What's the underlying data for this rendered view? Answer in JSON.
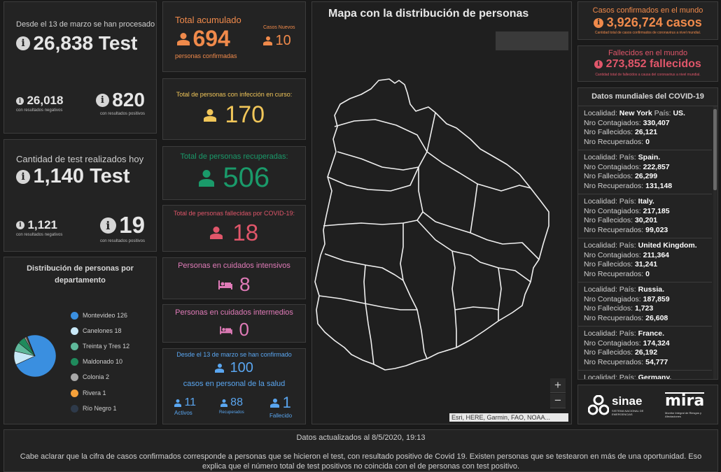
{
  "tests_total": {
    "caption": "Desde el 13 de marzo se han procesado",
    "value": "26,838 Test",
    "negatives": "26,018",
    "negatives_label": "con resultados negativos",
    "positives": "820",
    "positives_label": "con resultados positivos"
  },
  "tests_today": {
    "caption": "Cantidad de test realizados hoy",
    "value": "1,140 Test",
    "negatives": "1,121",
    "negatives_label": "con resultados negativos",
    "positives": "19",
    "positives_label": "con resultados positivos"
  },
  "dept_chart": {
    "title": "Distribución de personas por departamento",
    "chart_data": {
      "type": "pie",
      "categories": [
        "Montevideo",
        "Canelones",
        "Treinta y Tres",
        "Maldonado",
        "Colonia",
        "Rivera",
        "Río Negro"
      ],
      "values": [
        126,
        18,
        12,
        10,
        2,
        1,
        1
      ],
      "colors": [
        "#3a8fe0",
        "#c8e8f7",
        "#5fb89a",
        "#1f8a5c",
        "#a8a8a8",
        "#f5a03a",
        "#2e3a4a"
      ]
    }
  },
  "accumulated": {
    "title": "Total acumulado",
    "value": "694",
    "sub": "personas confirmadas",
    "new_label": "Casos Nuevos",
    "new_value": "10",
    "color": "#f08a4b"
  },
  "in_progress": {
    "title": "Total de personas con infección en curso:",
    "value": "170",
    "color": "#f1c659"
  },
  "recovered": {
    "title": "Total de personas recuperadas:",
    "value": "506",
    "color": "#1a9a6a"
  },
  "deceased": {
    "title": "Total de personas fallecidas por COVID-19:",
    "value": "18",
    "color": "#e0566a"
  },
  "icu": {
    "title": "Personas en cuidados intensivos",
    "value": "8",
    "color": "#e07bb8"
  },
  "intermediate": {
    "title": "Personas en cuidados intermedios",
    "value": "0",
    "color": "#e07bb8"
  },
  "health_staff": {
    "caption": "Desde el 13 de marzo se han confirmado",
    "value": "100",
    "sub": "casos en personal de la salud",
    "active": "11",
    "active_label": "Activos",
    "recovered": "88",
    "recovered_label": "Recuperados",
    "deceased": "1",
    "deceased_label": "Fallecido",
    "color": "#5aa6f0"
  },
  "map": {
    "title": "Mapa con la distribución de personas",
    "attribution": "Esri, HERE, Garmin, FAO, NOAA...",
    "zoom_in": "+",
    "zoom_out": "−"
  },
  "world_cases": {
    "title": "Casos confirmados en el mundo",
    "value": "3,926,724 casos",
    "sub": "Cantidad total de casos confirmados de coronavirus a nivel mundial.",
    "color": "#f08a4b"
  },
  "world_deaths": {
    "title": "Fallecidos en el mundo",
    "value": "273,852 fallecidos",
    "sub": "Cantidad total de fallecidos a causa del coronavirus a nivel mundial.",
    "color": "#e0566a"
  },
  "world_list": {
    "title": "Datos mundiales del COVID-19",
    "labels": {
      "loc": "Localidad:",
      "country": "País:",
      "cases": "Nro Contagiados:",
      "deaths": "Nro Fallecidos:",
      "recovered": "Nro Recuperados:"
    },
    "items": [
      {
        "loc": "New York",
        "country": "US.",
        "cases": "330,407",
        "deaths": "26,121",
        "recovered": "0"
      },
      {
        "loc": "",
        "country": "Spain.",
        "cases": "222,857",
        "deaths": "26,299",
        "recovered": "131,148"
      },
      {
        "loc": "",
        "country": "Italy.",
        "cases": "217,185",
        "deaths": "30,201",
        "recovered": "99,023"
      },
      {
        "loc": "",
        "country": "United Kingdom.",
        "cases": "211,364",
        "deaths": "31,241",
        "recovered": "0"
      },
      {
        "loc": "",
        "country": "Russia.",
        "cases": "187,859",
        "deaths": "1,723",
        "recovered": "26,608"
      },
      {
        "loc": "",
        "country": "France.",
        "cases": "174,324",
        "deaths": "26,192",
        "recovered": "54,777"
      },
      {
        "loc": "",
        "country": "Germany.",
        "cases": "",
        "deaths": "",
        "recovered": ""
      }
    ]
  },
  "logos": {
    "sinae": "sinae",
    "sinae_sub": "SISTEMA NACIONAL DE EMERGENCIAS",
    "mira": "mira",
    "mira_sub": "Monitor Integral de Riesgos y Afectaciones"
  },
  "footer": {
    "updated": "Datos actualizados al 8/5/2020, 19:13",
    "note": "Cabe aclarar que la cifra de casos confirmados corresponde a personas que se hicieron el test, con resultado positivo de Covid 19. Existen personas que se testearon en más de una oportunidad. Eso explica que el número total de test positivos no coincida con el de personas con test positivo."
  }
}
